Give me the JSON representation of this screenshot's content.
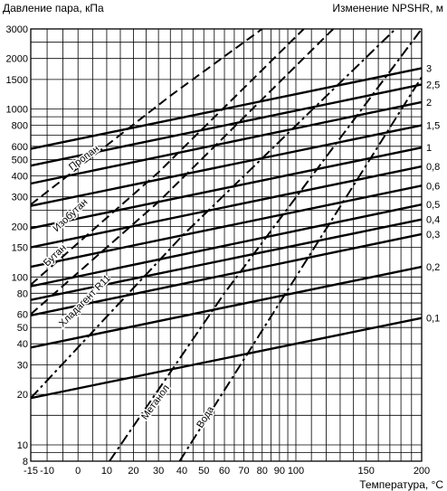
{
  "chart_data": {
    "type": "line",
    "title_left": "Давление пара, кПа",
    "title_right": "Изменение NPSHR, м",
    "xlabel": "Температура, °С",
    "x_scale": "reciprocal-absolute-temperature",
    "y_scale": "log",
    "xlim": [
      -15,
      200
    ],
    "ylim": [
      8,
      3000
    ],
    "x_ticks": [
      -15,
      -10,
      0,
      10,
      20,
      30,
      40,
      50,
      60,
      70,
      80,
      90,
      100,
      150,
      200
    ],
    "x_grid": [
      -15,
      -10,
      -5,
      0,
      5,
      10,
      15,
      20,
      25,
      30,
      35,
      40,
      45,
      50,
      55,
      60,
      65,
      70,
      75,
      80,
      85,
      90,
      95,
      100,
      110,
      120,
      130,
      140,
      150,
      160,
      170,
      180,
      190,
      200
    ],
    "y_ticks": [
      {
        "v": 3000,
        "t": "3000"
      },
      {
        "v": 2000,
        "t": "2000"
      },
      {
        "v": 1500,
        "t": "1500"
      },
      {
        "v": 1000,
        "t": "1000"
      },
      {
        "v": 800,
        "t": "800"
      },
      {
        "v": 600,
        "t": "600"
      },
      {
        "v": 500,
        "t": "500"
      },
      {
        "v": 400,
        "t": "400"
      },
      {
        "v": 300,
        "t": "300"
      },
      {
        "v": 200,
        "t": "200"
      },
      {
        "v": 150,
        "t": "150"
      },
      {
        "v": 100,
        "t": "100"
      },
      {
        "v": 80,
        "t": "80"
      },
      {
        "v": 60,
        "t": "60"
      },
      {
        "v": 50,
        "t": "50"
      },
      {
        "v": 40,
        "t": "40"
      },
      {
        "v": 30,
        "t": "30"
      },
      {
        "v": 20,
        "t": "20"
      },
      {
        "v": 10,
        "t": "10"
      },
      {
        "v": 8,
        "t": "8"
      }
    ],
    "y_grid": [
      3000,
      2500,
      2000,
      1500,
      1000,
      900,
      800,
      700,
      600,
      500,
      400,
      300,
      250,
      200,
      150,
      100,
      90,
      80,
      70,
      60,
      50,
      40,
      30,
      25,
      20,
      15,
      10,
      9,
      8
    ],
    "npshr_lines": [
      {
        "label": "3",
        "points": [
          [
            -15,
            580
          ],
          [
            200,
            1750
          ]
        ]
      },
      {
        "label": "2,5",
        "points": [
          [
            -15,
            460
          ],
          [
            200,
            1400
          ]
        ]
      },
      {
        "label": "2",
        "points": [
          [
            -15,
            360
          ],
          [
            200,
            1100
          ]
        ]
      },
      {
        "label": "1,5",
        "points": [
          [
            -15,
            265
          ],
          [
            200,
            800
          ]
        ]
      },
      {
        "label": "1",
        "points": [
          [
            -15,
            195
          ],
          [
            200,
            590
          ]
        ]
      },
      {
        "label": "0,8",
        "points": [
          [
            -15,
            150
          ],
          [
            200,
            455
          ]
        ]
      },
      {
        "label": "0,6",
        "points": [
          [
            -15,
            115
          ],
          [
            200,
            350
          ]
        ]
      },
      {
        "label": "0,5",
        "points": [
          [
            -15,
            88
          ],
          [
            200,
            270
          ]
        ]
      },
      {
        "label": "0,4",
        "points": [
          [
            -15,
            73
          ],
          [
            200,
            220
          ]
        ]
      },
      {
        "label": "0,3",
        "points": [
          [
            -15,
            59
          ],
          [
            200,
            180
          ]
        ]
      },
      {
        "label": "0,2",
        "points": [
          [
            -15,
            38
          ],
          [
            200,
            115
          ]
        ]
      },
      {
        "label": "0,1",
        "points": [
          [
            -15,
            19
          ],
          [
            200,
            57
          ]
        ]
      }
    ],
    "series": [
      {
        "name": "Пропан",
        "points": [
          [
            -15,
            270
          ],
          [
            35,
            1200
          ],
          [
            80,
            3000
          ]
        ]
      },
      {
        "name": "Изобутан",
        "points": [
          [
            -15,
            90
          ],
          [
            30,
            420
          ],
          [
            105,
            3000
          ]
        ]
      },
      {
        "name": "Бутан",
        "points": [
          [
            -15,
            60
          ],
          [
            30,
            280
          ],
          [
            125,
            3000
          ]
        ]
      },
      {
        "name": "Хладагент R11",
        "points": [
          [
            -15,
            19
          ],
          [
            40,
            175
          ],
          [
            175,
            3000
          ]
        ]
      },
      {
        "name": "Метанол",
        "points": [
          [
            11,
            8
          ],
          [
            60,
            80
          ],
          [
            200,
            3000
          ]
        ]
      },
      {
        "name": "Вода",
        "points": [
          [
            39,
            8
          ],
          [
            90,
            70
          ],
          [
            200,
            1550
          ]
        ]
      }
    ],
    "series_labels": [
      {
        "name": "Пропан",
        "x": -2,
        "y": 430
      },
      {
        "name": "Изобутан",
        "x": -7,
        "y": 185
      },
      {
        "name": "Бутан",
        "x": -10,
        "y": 115
      },
      {
        "name": "Хладагент R11",
        "x": -5,
        "y": 50
      },
      {
        "name": "Метанол",
        "x": 25,
        "y": 14
      },
      {
        "name": "Вода",
        "x": 49,
        "y": 12.5
      }
    ]
  }
}
